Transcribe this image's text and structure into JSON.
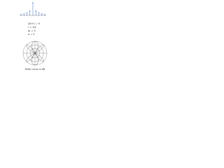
{
  "stem_plot": {
    "values": [
      0.08,
      0.12,
      0.2,
      0.35,
      1,
      0.35,
      0.2,
      0.12,
      0.08
    ],
    "ylim": [
      0,
      1
    ],
    "color": "#3a6fc4"
  },
  "parameters": [
    "2N+1 = 9",
    "r = λ/4",
    "φ₀ = 0",
    "α = 0"
  ],
  "caption": "Polar curve in dB"
}
